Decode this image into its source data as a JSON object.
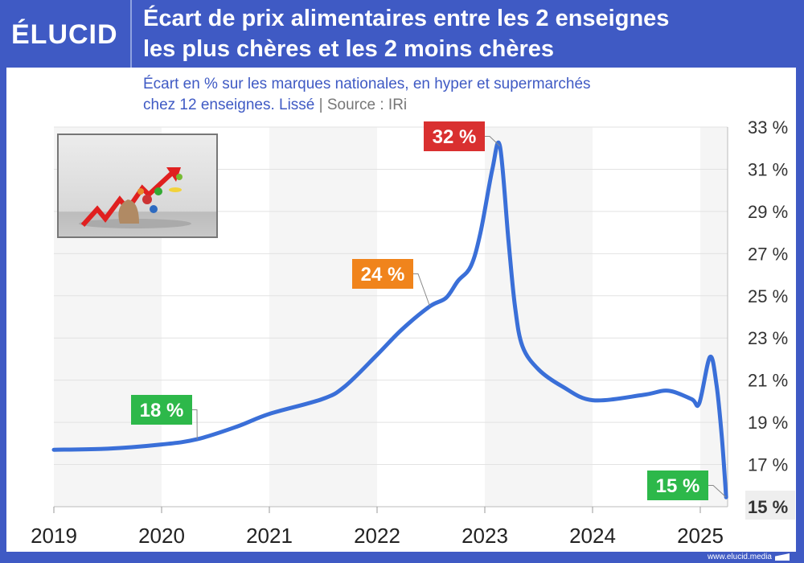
{
  "brand": {
    "logo": "ÉLUCID",
    "footer": "www.elucid.media"
  },
  "header": {
    "title_line1": "Écart de prix alimentaires entre les 2 enseignes",
    "title_line2": "les plus chères et les 2 moins chères"
  },
  "subtitle": {
    "line1": "Écart en % sur les marques nationales, en hyper et supermarchés",
    "line2": "chez 12 enseignes. Lissé",
    "separator": "|",
    "source": "Source : IRi"
  },
  "colors": {
    "brand_blue": "#3f5ac4",
    "line": "#3a6fd8",
    "red_label": "#d93030",
    "orange_label": "#f0841c",
    "green_label": "#2db84a"
  },
  "chart_data": {
    "type": "line",
    "xlabel": "",
    "ylabel": "",
    "xlim": [
      2019,
      2025.25
    ],
    "ylim": [
      15,
      33
    ],
    "x_ticks": [
      "2019",
      "2020",
      "2021",
      "2022",
      "2023",
      "2024",
      "2025"
    ],
    "y_ticks": [
      "33 %",
      "31 %",
      "29 %",
      "27 %",
      "25 %",
      "23 %",
      "21 %",
      "19 %",
      "17 %",
      "15 %"
    ],
    "grid": true,
    "alternating_year_bands": true,
    "series": [
      {
        "points": [
          [
            2019,
            17.7
          ],
          [
            2019.5,
            17.75
          ],
          [
            2020,
            17.95
          ],
          [
            2020.33,
            18.2
          ],
          [
            2020.7,
            18.8
          ],
          [
            2021,
            19.4
          ],
          [
            2021.49,
            20.1
          ],
          [
            2021.7,
            20.7
          ],
          [
            2022,
            22.2
          ],
          [
            2022.23,
            23.4
          ],
          [
            2022.49,
            24.5
          ],
          [
            2022.64,
            24.9
          ],
          [
            2022.75,
            25.7
          ],
          [
            2022.87,
            26.4
          ],
          [
            2022.96,
            28.0
          ],
          [
            2023.07,
            31.0
          ],
          [
            2023.14,
            32.1
          ],
          [
            2023.22,
            27.6
          ],
          [
            2023.28,
            24.5
          ],
          [
            2023.35,
            22.6
          ],
          [
            2023.5,
            21.5
          ],
          [
            2023.72,
            20.7
          ],
          [
            2024,
            20.05
          ],
          [
            2024.47,
            20.3
          ],
          [
            2024.7,
            20.5
          ],
          [
            2024.92,
            20.1
          ],
          [
            2024.99,
            19.9
          ],
          [
            2025.09,
            22.1
          ],
          [
            2025.15,
            20.8
          ],
          [
            2025.2,
            18.3
          ],
          [
            2025.24,
            15.45
          ]
        ]
      }
    ],
    "annotations": [
      {
        "text": "18 %",
        "x": 2020.33,
        "y": 18.2,
        "color": "green"
      },
      {
        "text": "24 %",
        "x": 2022.49,
        "y": 24.5,
        "color": "orange"
      },
      {
        "text": "32 %",
        "x": 2023.14,
        "y": 32.1,
        "color": "red"
      },
      {
        "text": "15 %",
        "x": 2025.24,
        "y": 15.45,
        "color": "green"
      }
    ],
    "highlighted_tick": "15 %"
  }
}
